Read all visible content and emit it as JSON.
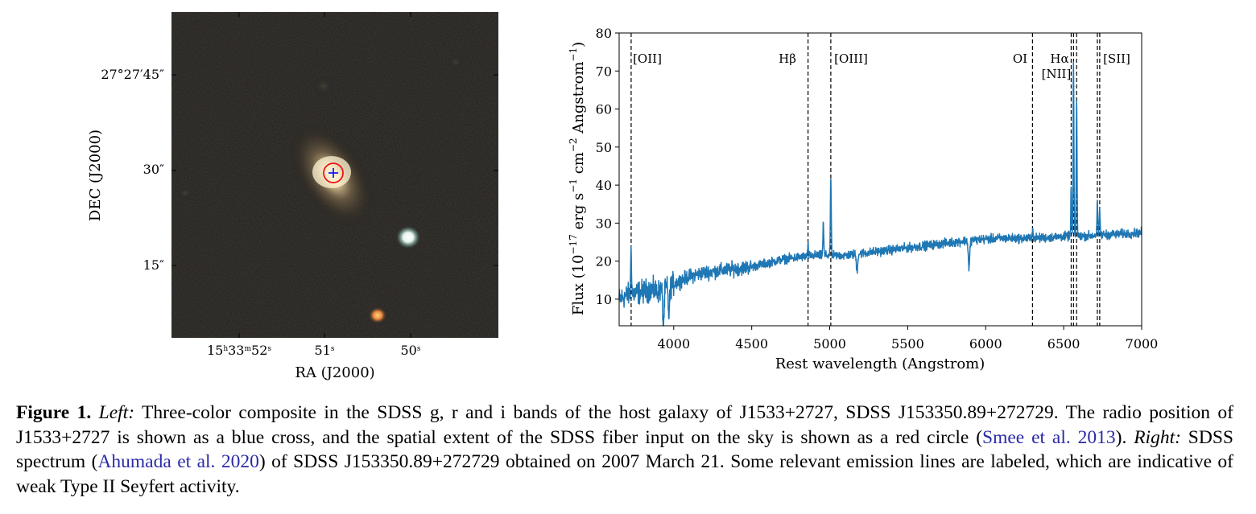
{
  "left_panel": {
    "xlabel": "RA (J2000)",
    "ylabel": "DEC (J2000)",
    "ra_ticks": [
      {
        "h": "15",
        "m": "33",
        "s": "52",
        "label": "15h33m52s"
      },
      {
        "s": "51",
        "label": "51s"
      },
      {
        "s": "50",
        "label": "50s"
      }
    ],
    "dec_ticks": [
      {
        "label": "27°27′45″"
      },
      {
        "label": "30″"
      },
      {
        "label": "15″"
      }
    ],
    "colors": {
      "cross": "#1a1aff",
      "circle": "#e8141c"
    }
  },
  "chart_data": {
    "type": "line",
    "xlabel": "Rest wavelength (Angstrom)",
    "ylabel": "Flux (10^-17 erg s^-1 cm^-2 Angstrom^-1)",
    "xlim": [
      3650,
      7000
    ],
    "ylim": [
      3,
      80
    ],
    "xticks": [
      4000,
      4500,
      5000,
      5500,
      6000,
      6500,
      7000
    ],
    "yticks": [
      10,
      20,
      30,
      40,
      50,
      60,
      70,
      80
    ],
    "line_color": "#1f77b4",
    "continuum": {
      "x": [
        3650,
        3700,
        3750,
        3800,
        3850,
        3900,
        3950,
        4000,
        4050,
        4100,
        4150,
        4200,
        4300,
        4400,
        4500,
        4600,
        4700,
        4800,
        4900,
        5000,
        5100,
        5200,
        5300,
        5400,
        5500,
        5600,
        5700,
        5800,
        5900,
        6000,
        6100,
        6200,
        6300,
        6400,
        6500,
        6600,
        6700,
        6800,
        6900,
        7000
      ],
      "y": [
        10,
        11,
        11.5,
        12,
        12.5,
        12,
        13,
        14,
        15,
        16,
        16.5,
        17,
        17.5,
        18,
        18.5,
        19.5,
        20.5,
        21,
        21.5,
        21.5,
        21.5,
        22,
        22.5,
        23,
        23.5,
        24,
        24.5,
        25,
        25.5,
        25.8,
        26,
        26,
        26,
        26.2,
        26.5,
        26.5,
        26.8,
        27,
        27.2,
        27.5
      ]
    },
    "emission_peaks": [
      {
        "x": 3727,
        "y": 24
      },
      {
        "x": 4861,
        "y": 24
      },
      {
        "x": 4959,
        "y": 30
      },
      {
        "x": 5007,
        "y": 42.5
      },
      {
        "x": 6300,
        "y": 29
      },
      {
        "x": 6548,
        "y": 39
      },
      {
        "x": 6563,
        "y": 73
      },
      {
        "x": 6583,
        "y": 63
      },
      {
        "x": 6716,
        "y": 35.5
      },
      {
        "x": 6731,
        "y": 33
      }
    ],
    "absorption_dips": [
      {
        "x": 3934,
        "y": 3
      },
      {
        "x": 3969,
        "y": 6
      },
      {
        "x": 5175,
        "y": 17.5
      },
      {
        "x": 5893,
        "y": 18
      }
    ],
    "lines": [
      {
        "label": "[OII]",
        "x": 3727
      },
      {
        "label": "Hβ",
        "x": 4861
      },
      {
        "label": "[OIII]",
        "x": 5007
      },
      {
        "label": "OI",
        "x": 6300
      },
      {
        "label": "Hα",
        "x": 6563
      },
      {
        "label": "[NII]",
        "x": 6548
      },
      {
        "label": "[SII]",
        "x": 6724
      }
    ],
    "extra_dashed_x": [
      6548,
      6563,
      6583,
      6716,
      6731
    ]
  },
  "caption": {
    "label": "Figure 1.",
    "p1": " ",
    "left": "Left:",
    "p2": " Three-color composite in the SDSS g, r and i bands of the host galaxy of J1533+2727, SDSS J153350.89+272729. The radio position of J1533+2727 is shown as a blue cross, and the spatial extent of the SDSS fiber input on the sky is shown as a red circle (",
    "cite1": "Smee et al. 2013",
    "p3": "). ",
    "right": "Right:",
    "p4": " SDSS spectrum (",
    "cite2": "Ahumada et al. 2020",
    "p5": ") of SDSS J153350.89+272729 obtained on 2007 March 21. Some relevant emission lines are labeled, which are indicative of weak Type II Seyfert activity."
  }
}
